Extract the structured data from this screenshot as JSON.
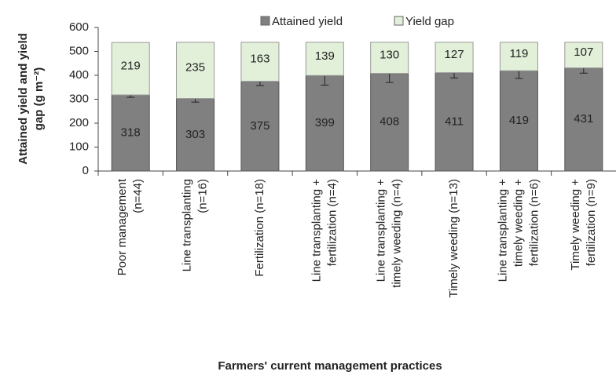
{
  "chart_data": {
    "type": "stacked_bar",
    "y_label": "Attained yield and yield\ngap (g m⁻²)",
    "x_label": "Farmers' current management practices",
    "categories": [
      "Poor management\n(n=44)",
      "Line transplanting\n(n=16)",
      "Fertilization (n=18)",
      "Line transplanting +\nfertilization (n=4)",
      "Line transplanting +\ntimely weeding (n=4)",
      "Timely weeding (n=13)",
      "Line transplanting +\ntimely weeding +\nfertilization (n=6)",
      "Timely weeding +\nfertilization (n=9)"
    ],
    "series": [
      {
        "name": "Attained yield",
        "color": "#808080",
        "values": [
          318,
          303,
          375,
          399,
          408,
          411,
          419,
          431
        ],
        "errors": [
          10,
          15,
          18,
          40,
          38,
          22,
          32,
          22
        ]
      },
      {
        "name": "Yield gap",
        "color": "#e2f0d9",
        "values": [
          219,
          235,
          163,
          139,
          130,
          127,
          119,
          107
        ]
      }
    ],
    "ylim": [
      0,
      600
    ],
    "yticks": [
      0,
      100,
      200,
      300,
      400,
      500,
      600
    ],
    "legend": "top"
  }
}
